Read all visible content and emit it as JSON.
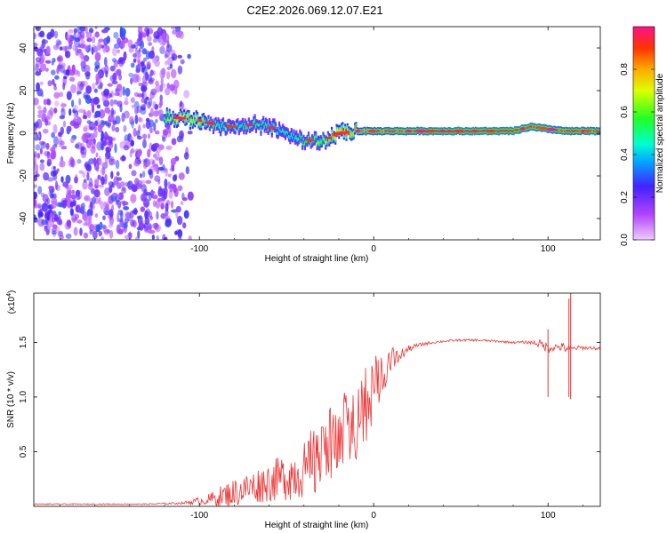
{
  "figure": {
    "title": "C2E2.2026.069.12.07.E21"
  },
  "chart_data": [
    {
      "type": "heatmap",
      "panel": "top",
      "xlabel": "Height of straight line (km)",
      "ylabel": "Frequency (Hz)",
      "xlim": [
        -195,
        130
      ],
      "ylim": [
        -50,
        50
      ],
      "xticks": [
        -100,
        0,
        100
      ],
      "xtick_labels": [
        "-100",
        "0",
        "100"
      ],
      "yticks": [
        -40,
        -20,
        0,
        20,
        40
      ],
      "ytick_labels": [
        "-40",
        "-20",
        "0",
        "20",
        "40"
      ],
      "colorbar": {
        "label": "Normalized spectral amplitude",
        "range": [
          0,
          1
        ],
        "ticks": [
          0.0,
          0.2,
          0.4,
          0.6,
          0.8
        ],
        "tick_labels": [
          "0.0",
          "0.2",
          "0.4",
          "0.6",
          "0.8"
        ]
      },
      "ridge": {
        "x": [
          -120,
          -110,
          -100,
          -90,
          -80,
          -70,
          -60,
          -50,
          -40,
          -30,
          -20,
          -10,
          0,
          20,
          40,
          60,
          80,
          90,
          100,
          110,
          120,
          130
        ],
        "frequency": [
          8,
          7,
          6,
          4,
          3,
          4,
          3,
          0,
          -3,
          -4,
          0,
          1,
          1,
          1,
          1,
          1,
          1,
          3,
          2,
          1,
          1,
          1
        ],
        "amplitude": [
          0.55,
          0.75,
          0.7,
          0.5,
          0.45,
          0.5,
          0.45,
          0.45,
          0.5,
          0.6,
          0.75,
          0.8,
          0.85,
          0.9,
          0.95,
          0.95,
          0.95,
          0.9,
          0.9,
          0.9,
          0.9,
          0.9
        ]
      },
      "noise_region": {
        "x_range": [
          -195,
          -105
        ],
        "frequency_range": [
          -50,
          50
        ],
        "amplitude_range": [
          0.05,
          0.3
        ]
      }
    },
    {
      "type": "line",
      "panel": "bottom",
      "xlabel": "Height of straight line (km)",
      "ylabel": "SNR (10 * v/v)",
      "y_multiplier": "(x10",
      "y_multiplier_exp": "4",
      "y_multiplier_close": ")",
      "xlim": [
        -195,
        130
      ],
      "ylim": [
        0.0,
        1.95
      ],
      "xticks": [
        -100,
        0,
        100
      ],
      "xtick_labels": [
        "-100",
        "0",
        "100"
      ],
      "yticks": [
        0.5,
        1.0,
        1.5
      ],
      "ytick_labels": [
        "0.5",
        "1.0",
        "1.5"
      ],
      "series": [
        {
          "name": "SNR",
          "color": "#ee3333",
          "envelope": {
            "x": [
              -195,
              -130,
              -110,
              -95,
              -85,
              -75,
              -65,
              -55,
              -45,
              -35,
              -25,
              -18,
              -10,
              -5,
              0,
              5,
              10,
              15,
              20,
              25,
              30,
              35,
              40,
              50,
              60,
              70,
              80,
              90,
              95,
              100,
              105,
              110,
              113,
              118,
              125,
              130
            ],
            "base": [
              0.02,
              0.02,
              0.03,
              0.06,
              0.1,
              0.15,
              0.2,
              0.25,
              0.3,
              0.38,
              0.5,
              0.6,
              0.72,
              0.85,
              1.05,
              1.2,
              1.3,
              1.38,
              1.44,
              1.47,
              1.49,
              1.5,
              1.51,
              1.52,
              1.52,
              1.51,
              1.5,
              1.5,
              1.49,
              1.45,
              1.46,
              1.45,
              1.44,
              1.45,
              1.45,
              1.44
            ],
            "noise": [
              0.005,
              0.005,
              0.01,
              0.05,
              0.12,
              0.14,
              0.17,
              0.2,
              0.25,
              0.28,
              0.3,
              0.32,
              0.3,
              0.3,
              0.25,
              0.18,
              0.12,
              0.06,
              0.03,
              0.02,
              0.015,
              0.01,
              0.01,
              0.01,
              0.01,
              0.01,
              0.01,
              0.015,
              0.04,
              0.05,
              0.03,
              0.05,
              0.02,
              0.02,
              0.015,
              0.015
            ]
          },
          "spikes": [
            {
              "x": 100,
              "min": 1.0,
              "max": 1.62
            },
            {
              "x": 112,
              "min": 1.0,
              "max": 1.9
            },
            {
              "x": 113,
              "min": 0.98,
              "max": 1.95
            }
          ]
        }
      ]
    }
  ]
}
